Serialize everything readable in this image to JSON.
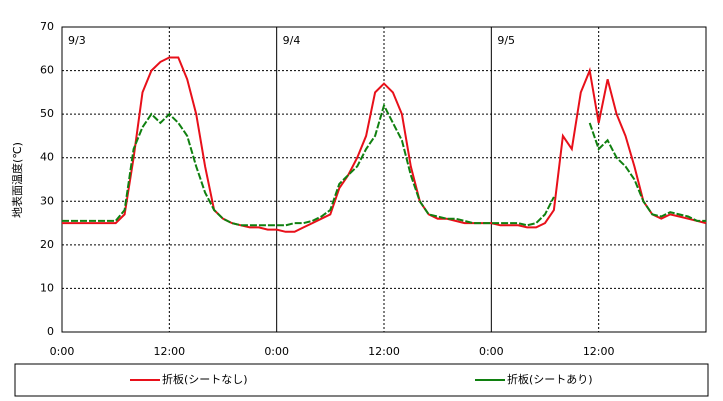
{
  "chart_data": {
    "type": "line",
    "y_label": "地表面温度(℃)",
    "annotations": [
      {
        "text": "9/3",
        "x": 0
      },
      {
        "text": "9/4",
        "x": 24
      },
      {
        "text": "9/5",
        "x": 48
      }
    ],
    "x": [
      0,
      1,
      2,
      3,
      4,
      5,
      6,
      7,
      8,
      9,
      10,
      11,
      12,
      13,
      14,
      15,
      16,
      17,
      18,
      19,
      20,
      21,
      22,
      23,
      24,
      25,
      26,
      27,
      28,
      29,
      30,
      31,
      32,
      33,
      34,
      35,
      36,
      37,
      38,
      39,
      40,
      41,
      42,
      43,
      44,
      45,
      46,
      47,
      48,
      49,
      50,
      51,
      52,
      53,
      54,
      55,
      56,
      57,
      58,
      59,
      60,
      61,
      62,
      63,
      64,
      65,
      66,
      67,
      68,
      69,
      70,
      71,
      72
    ],
    "series": [
      {
        "name": "折板(シートなし)",
        "color": "#e8101a",
        "dashed": false,
        "values": [
          25,
          25,
          25,
          25,
          25,
          25,
          25,
          27,
          40,
          55,
          60,
          62,
          63,
          63,
          58,
          50,
          38,
          28,
          26,
          25,
          24.5,
          24,
          24,
          23.5,
          23.5,
          23,
          23,
          24,
          25,
          26,
          27,
          33,
          36,
          40,
          45,
          55,
          57,
          55,
          50,
          38,
          30,
          27,
          26,
          26,
          25.5,
          25,
          25,
          25,
          25,
          24.5,
          24.5,
          24.5,
          24,
          24,
          25,
          28,
          45,
          42,
          55,
          60,
          48,
          58,
          50,
          45,
          38,
          30,
          27,
          26,
          27,
          26.5,
          26,
          25.5,
          25
        ]
      },
      {
        "name": "折板(シートあり)",
        "color": "#108010",
        "dashed": true,
        "values": [
          25.5,
          25.5,
          25.5,
          25.5,
          25.5,
          25.5,
          25.5,
          28,
          42,
          47,
          50,
          48,
          50,
          48,
          45,
          38,
          32,
          28,
          26,
          25,
          24.5,
          24.5,
          24.5,
          24.5,
          24.5,
          24.5,
          25,
          25,
          25.5,
          26.5,
          28,
          34,
          36,
          38,
          42,
          45,
          52,
          48,
          44,
          36,
          30,
          27,
          26.5,
          26,
          26,
          25.5,
          25,
          25,
          25,
          25,
          25,
          25,
          24.5,
          25,
          27,
          31,
          null,
          null,
          null,
          48,
          42,
          44,
          40,
          38,
          35,
          30,
          27,
          26.5,
          27.5,
          27,
          26.5,
          25.5,
          25.5
        ]
      }
    ],
    "xlim": [
      0,
      72
    ],
    "xticks": [
      {
        "value": 0,
        "label": "0:00"
      },
      {
        "value": 12,
        "label": "12:00"
      },
      {
        "value": 24,
        "label": "0:00"
      },
      {
        "value": 36,
        "label": "12:00"
      },
      {
        "value": 48,
        "label": "0:00"
      },
      {
        "value": 60,
        "label": "12:00"
      }
    ],
    "ylim": [
      0,
      70
    ],
    "yticks": [
      0,
      10,
      20,
      30,
      40,
      50,
      60,
      70
    ],
    "grid": true
  }
}
